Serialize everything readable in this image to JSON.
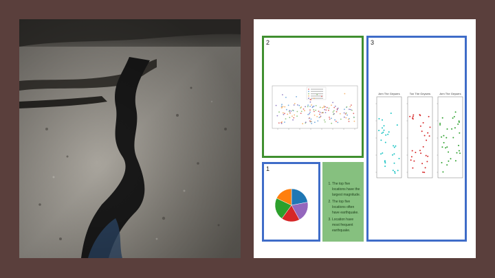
{
  "panels": {
    "p1_number": "1",
    "p2_number": "2",
    "p3_number": "3"
  },
  "notes": [
    "The top five locations have the largest magnitude.",
    "The top five locations often have earthquake.",
    "Location have most frequent earthquake."
  ],
  "colors": {
    "background": "#5a3f3c",
    "green_border": "#3f8f2f",
    "blue_border": "#3e6cc8",
    "notes_bg": "#86c07f"
  },
  "chart_data": [
    {
      "type": "scatter",
      "series": [
        {
          "color": "#e06666"
        },
        {
          "color": "#6fa8dc"
        },
        {
          "color": "#93c47d"
        },
        {
          "color": "#f6b26b"
        },
        {
          "color": "#8e7cc3"
        }
      ]
    },
    {
      "type": "pie",
      "values": [
        22,
        20,
        18,
        22,
        18
      ],
      "colors": [
        "#1f77b4",
        "#9467bd",
        "#d62728",
        "#2ca02c",
        "#ff7f0e"
      ]
    },
    {
      "type": "scatter",
      "titles": [
        "Arm The Geysers",
        "Ton The Geysers",
        "Arm The Geysers"
      ],
      "colors": [
        "#19c3c3",
        "#d62728",
        "#2ca02c"
      ]
    }
  ]
}
